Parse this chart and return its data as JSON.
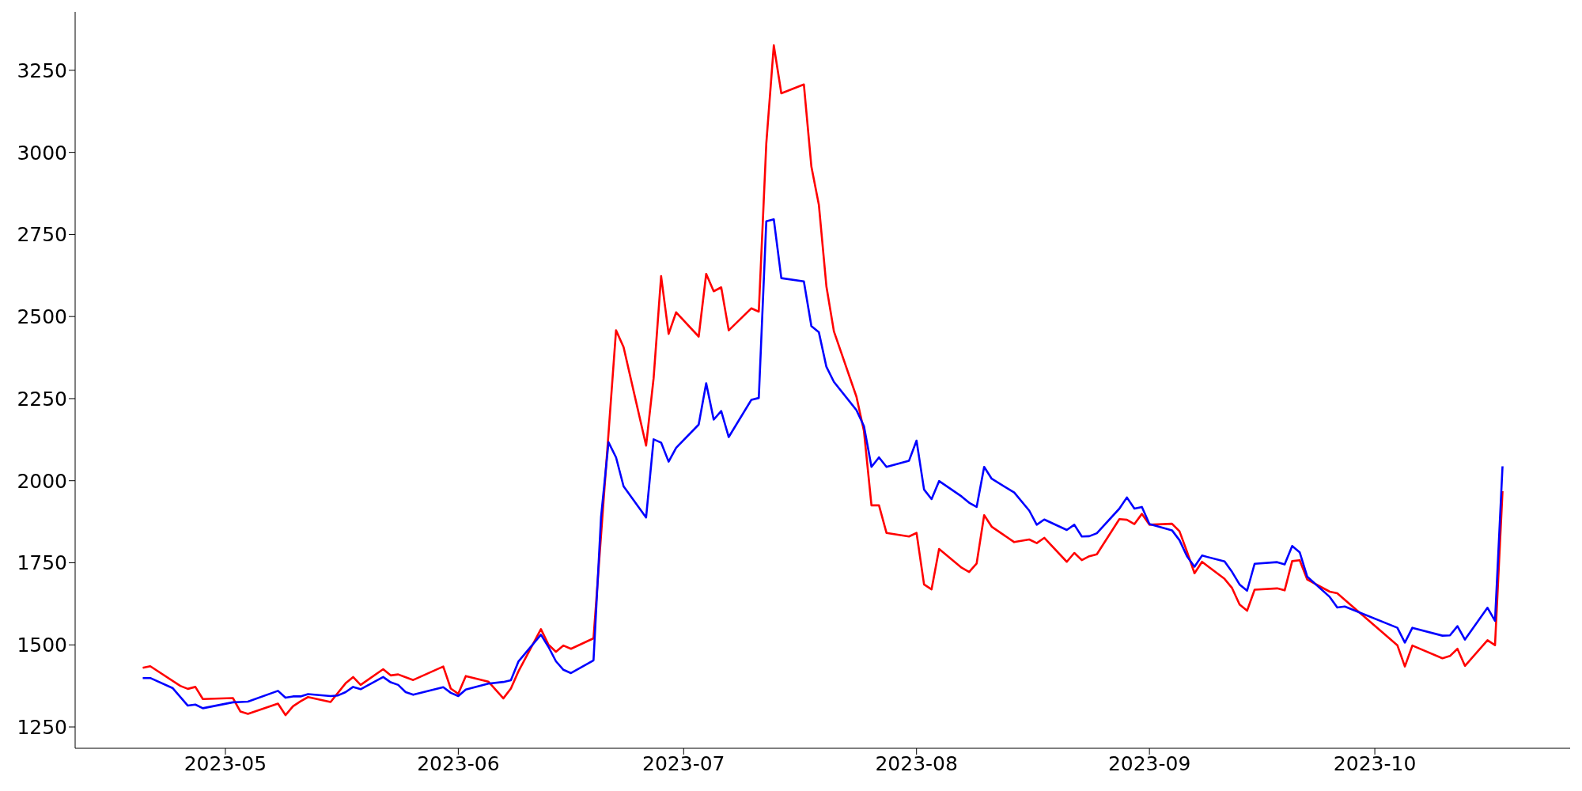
{
  "chart_data": {
    "type": "line",
    "xlim": [
      "2023-04-11",
      "2023-10-27"
    ],
    "xticks": [
      {
        "value": "2023-05-01",
        "label": "2023-05"
      },
      {
        "value": "2023-06-01",
        "label": "2023-06"
      },
      {
        "value": "2023-07-01",
        "label": "2023-07"
      },
      {
        "value": "2023-08-01",
        "label": "2023-08"
      },
      {
        "value": "2023-09-01",
        "label": "2023-09"
      },
      {
        "value": "2023-10-01",
        "label": "2023-10"
      }
    ],
    "ylim": [
      1185,
      3428
    ],
    "yticks": [
      1250,
      1500,
      1750,
      2000,
      2250,
      2500,
      2750,
      3000,
      3250
    ],
    "series": [
      {
        "color": "#ff0000",
        "x": [
          "2023-04-20",
          "2023-04-21",
          "2023-04-25",
          "2023-04-26",
          "2023-04-27",
          "2023-04-28",
          "2023-05-02",
          "2023-05-03",
          "2023-05-04",
          "2023-05-08",
          "2023-05-09",
          "2023-05-10",
          "2023-05-11",
          "2023-05-12",
          "2023-05-15",
          "2023-05-17",
          "2023-05-18",
          "2023-05-19",
          "2023-05-22",
          "2023-05-23",
          "2023-05-24",
          "2023-05-26",
          "2023-05-30",
          "2023-05-31",
          "2023-06-01",
          "2023-06-02",
          "2023-06-05",
          "2023-06-07",
          "2023-06-08",
          "2023-06-09",
          "2023-06-12",
          "2023-06-13",
          "2023-06-14",
          "2023-06-15",
          "2023-06-16",
          "2023-06-19",
          "2023-06-22",
          "2023-06-23",
          "2023-06-26",
          "2023-06-27",
          "2023-06-28",
          "2023-06-29",
          "2023-06-30",
          "2023-07-03",
          "2023-07-04",
          "2023-07-05",
          "2023-07-06",
          "2023-07-07",
          "2023-07-10",
          "2023-07-11",
          "2023-07-12",
          "2023-07-13",
          "2023-07-14",
          "2023-07-17",
          "2023-07-18",
          "2023-07-19",
          "2023-07-20",
          "2023-07-21",
          "2023-07-24",
          "2023-07-25",
          "2023-07-26",
          "2023-07-27",
          "2023-07-28",
          "2023-07-31",
          "2023-08-01",
          "2023-08-02",
          "2023-08-03",
          "2023-08-04",
          "2023-08-07",
          "2023-08-08",
          "2023-08-09",
          "2023-08-10",
          "2023-08-11",
          "2023-08-14",
          "2023-08-16",
          "2023-08-17",
          "2023-08-18",
          "2023-08-21",
          "2023-08-22",
          "2023-08-23",
          "2023-08-24",
          "2023-08-25",
          "2023-08-28",
          "2023-08-29",
          "2023-08-30",
          "2023-08-31",
          "2023-09-01",
          "2023-09-04",
          "2023-09-05",
          "2023-09-06",
          "2023-09-07",
          "2023-09-08",
          "2023-09-11",
          "2023-09-12",
          "2023-09-13",
          "2023-09-14",
          "2023-09-15",
          "2023-09-18",
          "2023-09-19",
          "2023-09-20",
          "2023-09-21",
          "2023-09-22",
          "2023-09-25",
          "2023-09-26",
          "2023-10-04",
          "2023-10-05",
          "2023-10-06",
          "2023-10-10",
          "2023-10-11",
          "2023-10-12",
          "2023-10-13",
          "2023-10-16",
          "2023-10-17",
          "2023-10-18"
        ],
        "values": [
          1430,
          1435,
          1375,
          1366,
          1372,
          1335,
          1338,
          1297,
          1290,
          1321,
          1286,
          1313,
          1328,
          1341,
          1326,
          1383,
          1402,
          1378,
          1426,
          1407,
          1410,
          1393,
          1434,
          1367,
          1351,
          1405,
          1388,
          1337,
          1367,
          1419,
          1548,
          1501,
          1479,
          1498,
          1488,
          1520,
          2458,
          2407,
          2107,
          2312,
          2623,
          2447,
          2513,
          2439,
          2630,
          2577,
          2589,
          2458,
          2525,
          2515,
          3027,
          3326,
          3180,
          3207,
          2957,
          2840,
          2592,
          2455,
          2256,
          2151,
          1925,
          1925,
          1841,
          1830,
          1841,
          1684,
          1669,
          1792,
          1735,
          1722,
          1748,
          1895,
          1860,
          1813,
          1821,
          1810,
          1826,
          1753,
          1780,
          1758,
          1770,
          1776,
          1883,
          1881,
          1868,
          1899,
          1866,
          1869,
          1846,
          1784,
          1718,
          1753,
          1701,
          1673,
          1623,
          1604,
          1668,
          1672,
          1666,
          1755,
          1758,
          1699,
          1662,
          1657,
          1499,
          1434,
          1498,
          1459,
          1466,
          1488,
          1436,
          1514,
          1499,
          1968
        ]
      },
      {
        "color": "#0000ff",
        "x": [
          "2023-04-20",
          "2023-04-21",
          "2023-04-24",
          "2023-04-26",
          "2023-04-27",
          "2023-04-28",
          "2023-05-02",
          "2023-05-03",
          "2023-05-04",
          "2023-05-08",
          "2023-05-09",
          "2023-05-10",
          "2023-05-11",
          "2023-05-12",
          "2023-05-15",
          "2023-05-16",
          "2023-05-17",
          "2023-05-18",
          "2023-05-19",
          "2023-05-22",
          "2023-05-23",
          "2023-05-24",
          "2023-05-25",
          "2023-05-26",
          "2023-05-30",
          "2023-05-31",
          "2023-06-01",
          "2023-06-02",
          "2023-06-05",
          "2023-06-07",
          "2023-06-08",
          "2023-06-09",
          "2023-06-12",
          "2023-06-13",
          "2023-06-14",
          "2023-06-15",
          "2023-06-16",
          "2023-06-19",
          "2023-06-20",
          "2023-06-21",
          "2023-06-22",
          "2023-06-23",
          "2023-06-26",
          "2023-06-27",
          "2023-06-28",
          "2023-06-29",
          "2023-06-30",
          "2023-07-03",
          "2023-07-04",
          "2023-07-05",
          "2023-07-06",
          "2023-07-07",
          "2023-07-10",
          "2023-07-11",
          "2023-07-12",
          "2023-07-13",
          "2023-07-14",
          "2023-07-17",
          "2023-07-18",
          "2023-07-19",
          "2023-07-20",
          "2023-07-21",
          "2023-07-24",
          "2023-07-25",
          "2023-07-26",
          "2023-07-27",
          "2023-07-28",
          "2023-07-31",
          "2023-08-01",
          "2023-08-02",
          "2023-08-03",
          "2023-08-04",
          "2023-08-07",
          "2023-08-08",
          "2023-08-09",
          "2023-08-10",
          "2023-08-11",
          "2023-08-14",
          "2023-08-16",
          "2023-08-17",
          "2023-08-18",
          "2023-08-21",
          "2023-08-22",
          "2023-08-23",
          "2023-08-24",
          "2023-08-25",
          "2023-08-28",
          "2023-08-29",
          "2023-08-30",
          "2023-08-31",
          "2023-09-01",
          "2023-09-04",
          "2023-09-05",
          "2023-09-06",
          "2023-09-07",
          "2023-09-08",
          "2023-09-11",
          "2023-09-12",
          "2023-09-13",
          "2023-09-14",
          "2023-09-15",
          "2023-09-18",
          "2023-09-19",
          "2023-09-20",
          "2023-09-21",
          "2023-09-22",
          "2023-09-25",
          "2023-09-26",
          "2023-09-27",
          "2023-10-04",
          "2023-10-05",
          "2023-10-06",
          "2023-10-10",
          "2023-10-11",
          "2023-10-12",
          "2023-10-13",
          "2023-10-16",
          "2023-10-17",
          "2023-10-18"
        ],
        "values": [
          1399,
          1399,
          1368,
          1315,
          1318,
          1307,
          1325,
          1326,
          1327,
          1360,
          1339,
          1343,
          1343,
          1350,
          1344,
          1346,
          1356,
          1372,
          1365,
          1402,
          1386,
          1378,
          1356,
          1348,
          1371,
          1354,
          1344,
          1364,
          1382,
          1387,
          1392,
          1449,
          1531,
          1494,
          1450,
          1424,
          1414,
          1453,
          1888,
          2117,
          2071,
          1983,
          1888,
          2126,
          2116,
          2058,
          2100,
          2171,
          2297,
          2186,
          2212,
          2133,
          2246,
          2252,
          2790,
          2796,
          2617,
          2607,
          2471,
          2452,
          2347,
          2301,
          2215,
          2166,
          2042,
          2071,
          2042,
          2061,
          2122,
          1973,
          1944,
          1999,
          1952,
          1933,
          1920,
          2042,
          2006,
          1964,
          1909,
          1866,
          1882,
          1850,
          1866,
          1830,
          1831,
          1840,
          1915,
          1949,
          1915,
          1920,
          1868,
          1849,
          1819,
          1770,
          1738,
          1772,
          1754,
          1722,
          1684,
          1665,
          1747,
          1752,
          1745,
          1801,
          1782,
          1708,
          1646,
          1614,
          1617,
          1552,
          1507,
          1552,
          1528,
          1529,
          1557,
          1516,
          1613,
          1573,
          2044
        ]
      }
    ]
  }
}
